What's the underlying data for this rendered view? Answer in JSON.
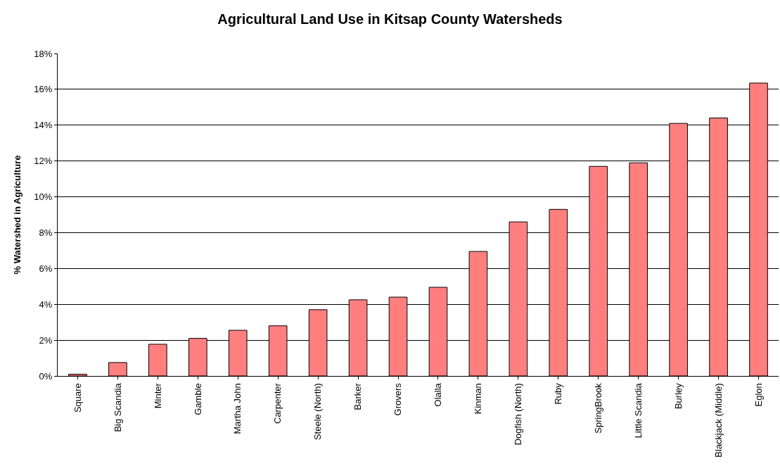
{
  "chart_data": {
    "type": "bar",
    "title": "Agricultural Land Use in Kitsap County Watersheds",
    "ylabel": "% Watershed in Agriculture",
    "categories": [
      "Square",
      "Big Scandia",
      "Minter",
      "Gamble",
      "Martha John",
      "Carpenter",
      "Steele (North)",
      "Barker",
      "Grovers",
      "Olalla",
      "Kinman",
      "Dogfish (North)",
      "Ruby",
      "SpringBrook",
      "Little Scandia",
      "Burley",
      "Blackjack (Middle)",
      "Eglon"
    ],
    "values": [
      0.1,
      0.75,
      1.77,
      2.1,
      2.55,
      2.8,
      3.7,
      4.25,
      4.4,
      4.95,
      6.95,
      8.6,
      9.3,
      11.7,
      11.9,
      14.1,
      14.4,
      16.35
    ],
    "color": "#ff7f7f",
    "ylim": [
      0,
      18
    ],
    "yticks": [
      {
        "value": 0,
        "label": "0%"
      },
      {
        "value": 2,
        "label": "2%"
      },
      {
        "value": 4,
        "label": "4%"
      },
      {
        "value": 6,
        "label": "6%"
      },
      {
        "value": 8,
        "label": "8%"
      },
      {
        "value": 10,
        "label": "10%"
      },
      {
        "value": 12,
        "label": "12%"
      },
      {
        "value": 14,
        "label": "14%"
      },
      {
        "value": 16,
        "label": "16%"
      },
      {
        "value": 18,
        "label": "18%"
      }
    ],
    "grid": "y",
    "legend": false
  }
}
